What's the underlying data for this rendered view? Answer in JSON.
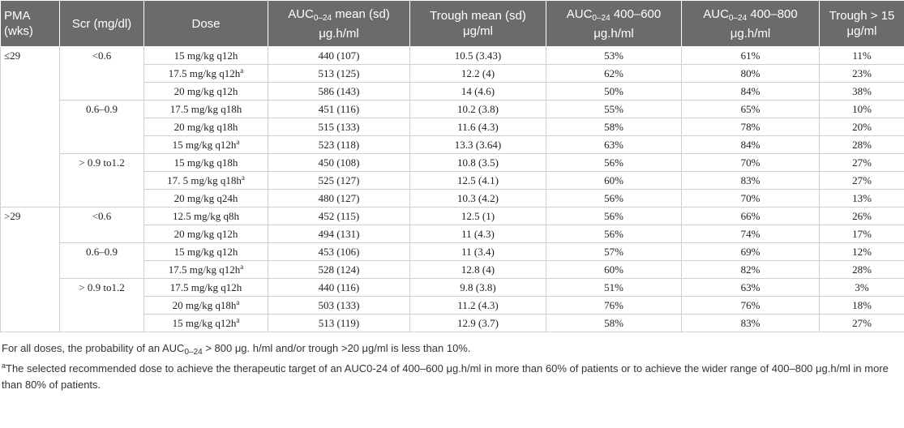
{
  "table": {
    "header": [
      {
        "text": "PMA (wks)"
      },
      {
        "text": "Scr (mg/dl)"
      },
      {
        "text": "Dose"
      },
      {
        "pre": "AUC",
        "sub": "0–24",
        "post": " mean (sd) μg.h/ml"
      },
      {
        "text": "Trough mean (sd) μg/ml"
      },
      {
        "pre": "AUC",
        "sub": "0–24",
        "post": " 400–600 μg.h/ml"
      },
      {
        "pre": "AUC",
        "sub": "0–24",
        "post": " 400–800 μg.h/ml"
      },
      {
        "text": "Trough > 15 μg/ml"
      }
    ],
    "groups": [
      {
        "pma": "≤29",
        "subgroups": [
          {
            "scr": "<0.6",
            "rows": [
              {
                "dose": "15 mg/kg q12h",
                "auc": "440 (107)",
                "trough": "10.5 (3.43)",
                "p400_600": "53%",
                "p400_800": "61%",
                "trough15": "11%"
              },
              {
                "dose": "17.5 mg/kg q12h",
                "note": "a",
                "auc": "513 (125)",
                "trough": "12.2 (4)",
                "p400_600": "62%",
                "p400_800": "80%",
                "trough15": "23%"
              },
              {
                "dose": "20 mg/kg q12h",
                "auc": "586 (143)",
                "trough": "14 (4.6)",
                "p400_600": "50%",
                "p400_800": "84%",
                "trough15": "38%"
              }
            ]
          },
          {
            "scr": "0.6–0.9",
            "rows": [
              {
                "dose": "17.5 mg/kg q18h",
                "auc": "451 (116)",
                "trough": "10.2 (3.8)",
                "p400_600": "55%",
                "p400_800": "65%",
                "trough15": "10%"
              },
              {
                "dose": "20 mg/kg q18h",
                "auc": "515 (133)",
                "trough": "11.6 (4.3)",
                "p400_600": "58%",
                "p400_800": "78%",
                "trough15": "20%"
              },
              {
                "dose": "15 mg/kg q12h",
                "note": "a",
                "auc": "523 (118)",
                "trough": "13.3 (3.64)",
                "p400_600": "63%",
                "p400_800": "84%",
                "trough15": "28%"
              }
            ]
          },
          {
            "scr": "> 0.9 to1.2",
            "rows": [
              {
                "dose": "15 mg/kg q18h",
                "auc": "450 (108)",
                "trough": "10.8 (3.5)",
                "p400_600": "56%",
                "p400_800": "70%",
                "trough15": "27%"
              },
              {
                "dose": "17. 5 mg/kg q18h",
                "note": "a",
                "auc": "525 (127)",
                "trough": "12.5 (4.1)",
                "p400_600": "60%",
                "p400_800": "83%",
                "trough15": "27%"
              },
              {
                "dose": "20 mg/kg q24h",
                "auc": "480 (127)",
                "trough": "10.3 (4.2)",
                "p400_600": "56%",
                "p400_800": "70%",
                "trough15": "13%"
              }
            ]
          }
        ]
      },
      {
        "pma": ">29",
        "subgroups": [
          {
            "scr": "<0.6",
            "rows": [
              {
                "dose": "12.5 mg/kg q8h",
                "auc": "452 (115)",
                "trough": "12.5 (1)",
                "p400_600": "56%",
                "p400_800": "66%",
                "trough15": "26%"
              },
              {
                "dose": "20 mg/kg q12h",
                "auc": "494 (131)",
                "trough": "11 (4.3)",
                "p400_600": "56%",
                "p400_800": "74%",
                "trough15": "17%"
              }
            ]
          },
          {
            "scr": "0.6–0.9",
            "rows": [
              {
                "dose": "15 mg/kg q12h",
                "auc": "453 (106)",
                "trough": "11 (3.4)",
                "p400_600": "57%",
                "p400_800": "69%",
                "trough15": "12%"
              },
              {
                "dose": "17.5 mg/kg q12h",
                "note": "a",
                "auc": "528 (124)",
                "trough": "12.8 (4)",
                "p400_600": "60%",
                "p400_800": "82%",
                "trough15": "28%"
              }
            ]
          },
          {
            "scr": "> 0.9 to1.2",
            "rows": [
              {
                "dose": "17.5 mg/kg q12h",
                "auc": "440 (116)",
                "trough": "9.8 (3.8)",
                "p400_600": "51%",
                "p400_800": "63%",
                "trough15": "3%"
              },
              {
                "dose": "20 mg/kg q18h",
                "note": "a",
                "auc": "503 (133)",
                "trough": "11.2 (4.3)",
                "p400_600": "76%",
                "p400_800": "76%",
                "trough15": "18%"
              },
              {
                "dose": "15 mg/kg q12h",
                "note": "a",
                "auc": "513 (119)",
                "trough": "12.9 (3.7)",
                "p400_600": "58%",
                "p400_800": "83%",
                "trough15": "27%"
              }
            ]
          }
        ]
      }
    ]
  },
  "footnotes": {
    "first": {
      "pre": "For all doses, the probability of an AUC",
      "sub": "0–24",
      "post": " > 800 μg. h/ml and/or trough >20 μg/ml is less than 10%."
    },
    "second": {
      "mark": "a",
      "text": "The selected recommended dose to achieve the therapeutic target of an AUC0-24 of 400–600 μg.h/ml in more than 60% of patients or to achieve the wider range of 400–800 μg.h/ml in more than 80% of patients."
    }
  }
}
